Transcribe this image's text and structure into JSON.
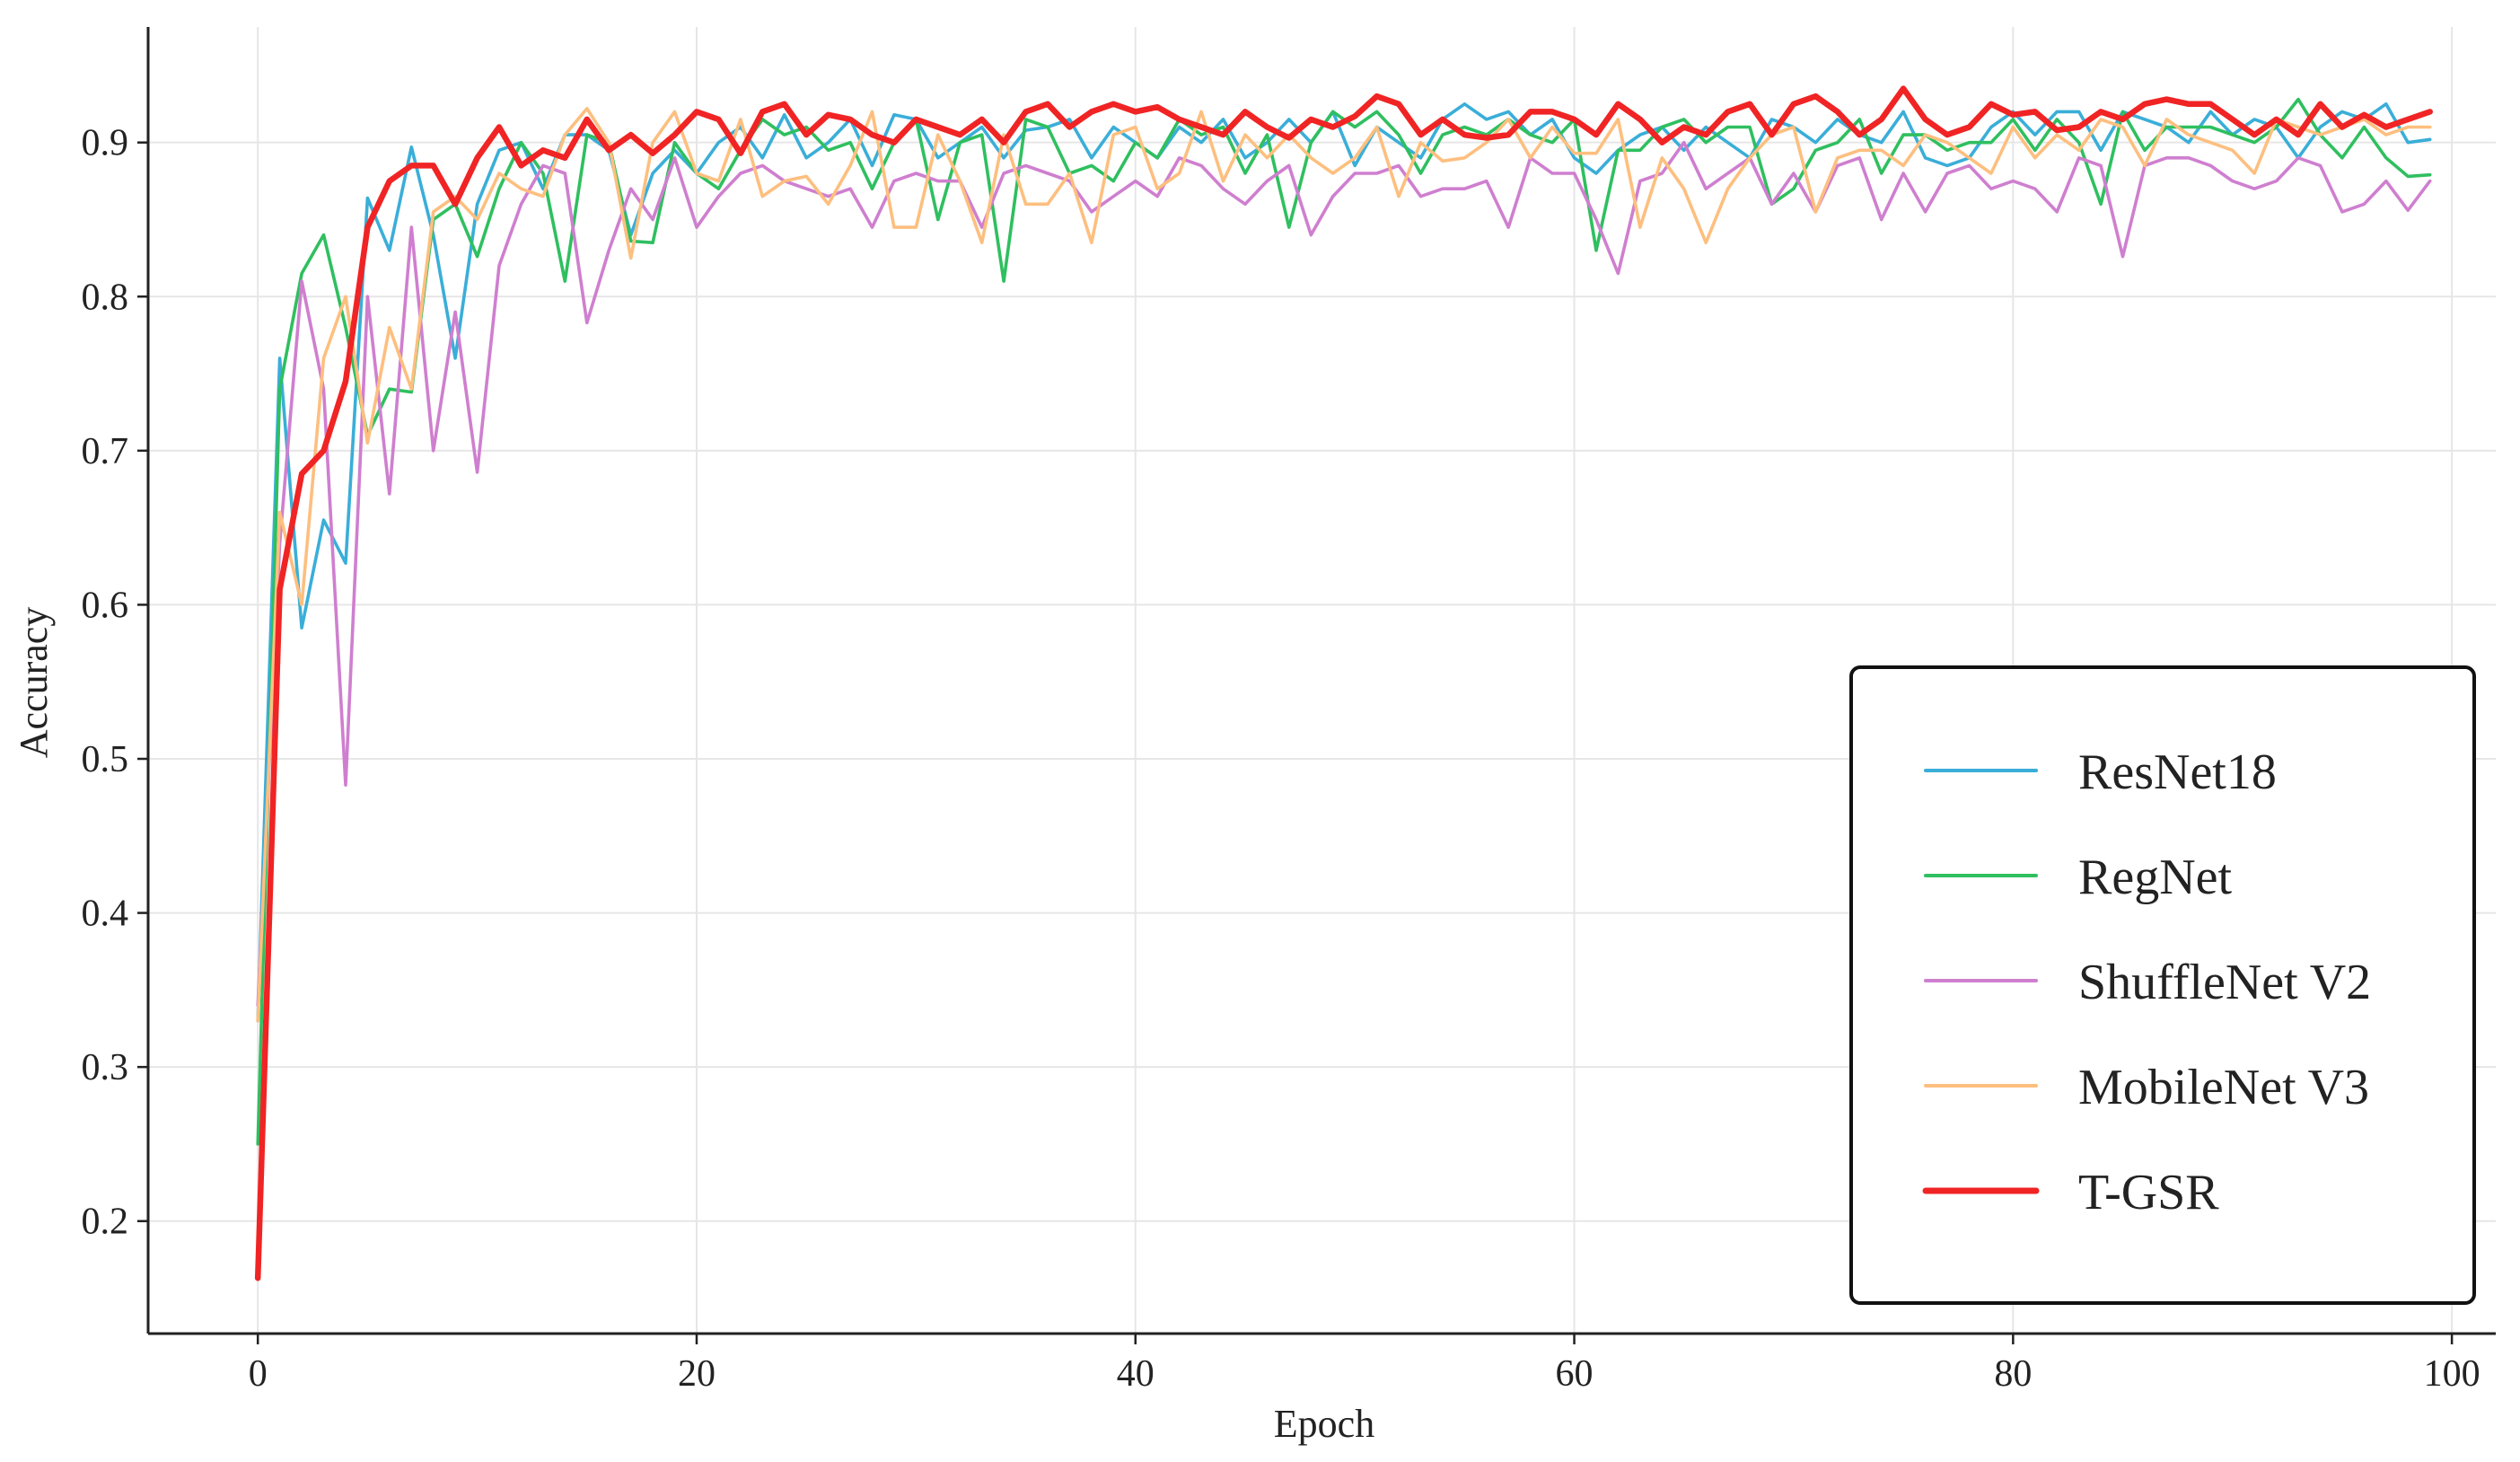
{
  "chart_data": {
    "type": "line",
    "title": "",
    "xlabel": "Epoch",
    "ylabel": "Accuracy",
    "xlim": [
      -5,
      102
    ],
    "ylim": [
      0.127,
      0.975
    ],
    "xticks": [
      0,
      20,
      40,
      60,
      80,
      100
    ],
    "yticks": [
      0.2,
      0.3,
      0.4,
      0.5,
      0.6,
      0.7,
      0.8,
      0.9
    ],
    "xtick_labels": [
      "0",
      "20",
      "40",
      "60",
      "80",
      "100"
    ],
    "ytick_labels": [
      "0.2",
      "0.3",
      "0.4",
      "0.5",
      "0.6",
      "0.7",
      "0.8",
      "0.9"
    ],
    "grid": true,
    "legend_position": "lower-right",
    "series": [
      {
        "name": "ResNet18",
        "color": "#3aaed8",
        "values": [
          0.33,
          0.76,
          0.585,
          0.655,
          0.627,
          0.864,
          0.83,
          0.897,
          0.84,
          0.76,
          0.86,
          0.895,
          0.9,
          0.87,
          0.905,
          0.905,
          0.895,
          0.84,
          0.88,
          0.895,
          0.88,
          0.9,
          0.91,
          0.89,
          0.918,
          0.89,
          0.9,
          0.915,
          0.885,
          0.918,
          0.915,
          0.89,
          0.9,
          0.91,
          0.89,
          0.908,
          0.91,
          0.915,
          0.89,
          0.91,
          0.9,
          0.89,
          0.91,
          0.9,
          0.915,
          0.89,
          0.9,
          0.915,
          0.9,
          0.92,
          0.885,
          0.91,
          0.9,
          0.89,
          0.915,
          0.925,
          0.915,
          0.92,
          0.905,
          0.915,
          0.89,
          0.88,
          0.895,
          0.905,
          0.91,
          0.895,
          0.91,
          0.9,
          0.89,
          0.915,
          0.91,
          0.9,
          0.915,
          0.905,
          0.9,
          0.92,
          0.89,
          0.885,
          0.89,
          0.91,
          0.92,
          0.905,
          0.92,
          0.92,
          0.895,
          0.92,
          0.915,
          0.91,
          0.9,
          0.92,
          0.905,
          0.915,
          0.91,
          0.89,
          0.91,
          0.92,
          0.915,
          0.925,
          0.9,
          0.902
        ]
      },
      {
        "name": "RegNet",
        "color": "#2fbf5f",
        "values": [
          0.25,
          0.74,
          0.815,
          0.84,
          0.78,
          0.71,
          0.74,
          0.738,
          0.85,
          0.86,
          0.826,
          0.87,
          0.9,
          0.88,
          0.81,
          0.905,
          0.9,
          0.836,
          0.835,
          0.9,
          0.88,
          0.87,
          0.895,
          0.915,
          0.905,
          0.91,
          0.895,
          0.9,
          0.87,
          0.9,
          0.915,
          0.85,
          0.9,
          0.905,
          0.81,
          0.915,
          0.91,
          0.88,
          0.885,
          0.875,
          0.9,
          0.89,
          0.915,
          0.905,
          0.91,
          0.88,
          0.905,
          0.845,
          0.9,
          0.92,
          0.91,
          0.92,
          0.905,
          0.88,
          0.905,
          0.91,
          0.905,
          0.915,
          0.905,
          0.9,
          0.915,
          0.83,
          0.895,
          0.895,
          0.91,
          0.915,
          0.9,
          0.91,
          0.91,
          0.86,
          0.87,
          0.895,
          0.9,
          0.915,
          0.88,
          0.905,
          0.905,
          0.895,
          0.9,
          0.9,
          0.915,
          0.895,
          0.915,
          0.9,
          0.86,
          0.92,
          0.895,
          0.91,
          0.91,
          0.91,
          0.905,
          0.9,
          0.91,
          0.928,
          0.905,
          0.89,
          0.91,
          0.89,
          0.878,
          0.879
        ]
      },
      {
        "name": "ShuffleNet V2",
        "color": "#cf7fcf",
        "values": [
          0.34,
          0.64,
          0.81,
          0.74,
          0.483,
          0.8,
          0.672,
          0.845,
          0.7,
          0.79,
          0.686,
          0.82,
          0.86,
          0.885,
          0.88,
          0.783,
          0.83,
          0.87,
          0.85,
          0.89,
          0.845,
          0.865,
          0.88,
          0.885,
          0.875,
          0.87,
          0.865,
          0.87,
          0.845,
          0.875,
          0.88,
          0.875,
          0.875,
          0.845,
          0.88,
          0.885,
          0.88,
          0.875,
          0.855,
          0.865,
          0.875,
          0.865,
          0.89,
          0.885,
          0.87,
          0.86,
          0.875,
          0.885,
          0.84,
          0.865,
          0.88,
          0.88,
          0.885,
          0.865,
          0.87,
          0.87,
          0.875,
          0.845,
          0.89,
          0.88,
          0.88,
          0.85,
          0.815,
          0.875,
          0.88,
          0.9,
          0.87,
          0.88,
          0.89,
          0.86,
          0.88,
          0.855,
          0.885,
          0.89,
          0.85,
          0.88,
          0.855,
          0.88,
          0.885,
          0.87,
          0.875,
          0.87,
          0.855,
          0.89,
          0.885,
          0.826,
          0.885,
          0.89,
          0.89,
          0.885,
          0.875,
          0.87,
          0.875,
          0.89,
          0.885,
          0.855,
          0.86,
          0.875,
          0.856,
          0.875
        ]
      },
      {
        "name": "MobileNet V3",
        "color": "#fdbf7f",
        "values": [
          0.33,
          0.66,
          0.6,
          0.76,
          0.8,
          0.705,
          0.78,
          0.74,
          0.855,
          0.865,
          0.85,
          0.88,
          0.87,
          0.865,
          0.905,
          0.922,
          0.9,
          0.825,
          0.9,
          0.92,
          0.88,
          0.875,
          0.915,
          0.865,
          0.875,
          0.878,
          0.86,
          0.885,
          0.92,
          0.845,
          0.845,
          0.905,
          0.875,
          0.835,
          0.905,
          0.86,
          0.86,
          0.88,
          0.835,
          0.905,
          0.91,
          0.87,
          0.88,
          0.92,
          0.875,
          0.905,
          0.89,
          0.905,
          0.89,
          0.88,
          0.89,
          0.91,
          0.865,
          0.9,
          0.888,
          0.89,
          0.9,
          0.915,
          0.89,
          0.91,
          0.893,
          0.893,
          0.915,
          0.845,
          0.89,
          0.87,
          0.835,
          0.87,
          0.89,
          0.905,
          0.91,
          0.855,
          0.89,
          0.895,
          0.895,
          0.885,
          0.905,
          0.9,
          0.89,
          0.88,
          0.91,
          0.89,
          0.905,
          0.895,
          0.915,
          0.91,
          0.885,
          0.915,
          0.905,
          0.9,
          0.895,
          0.88,
          0.915,
          0.91,
          0.905,
          0.91,
          0.915,
          0.905,
          0.91,
          0.91
        ]
      },
      {
        "name": "T-GSR",
        "color": "#f02424",
        "values": [
          0.163,
          0.61,
          0.685,
          0.7,
          0.745,
          0.845,
          0.875,
          0.885,
          0.885,
          0.86,
          0.89,
          0.91,
          0.885,
          0.895,
          0.89,
          0.915,
          0.895,
          0.905,
          0.893,
          0.905,
          0.92,
          0.915,
          0.893,
          0.92,
          0.925,
          0.905,
          0.918,
          0.915,
          0.905,
          0.9,
          0.915,
          0.91,
          0.905,
          0.915,
          0.9,
          0.92,
          0.925,
          0.91,
          0.92,
          0.925,
          0.92,
          0.923,
          0.915,
          0.91,
          0.905,
          0.92,
          0.91,
          0.903,
          0.915,
          0.91,
          0.917,
          0.93,
          0.925,
          0.905,
          0.915,
          0.905,
          0.903,
          0.905,
          0.92,
          0.92,
          0.915,
          0.905,
          0.925,
          0.915,
          0.9,
          0.91,
          0.905,
          0.92,
          0.925,
          0.905,
          0.925,
          0.93,
          0.92,
          0.905,
          0.915,
          0.935,
          0.915,
          0.905,
          0.91,
          0.925,
          0.918,
          0.92,
          0.908,
          0.91,
          0.92,
          0.915,
          0.925,
          0.928,
          0.925,
          0.925,
          0.915,
          0.905,
          0.915,
          0.905,
          0.925,
          0.91,
          0.918,
          0.91,
          0.915,
          0.92
        ]
      }
    ]
  }
}
